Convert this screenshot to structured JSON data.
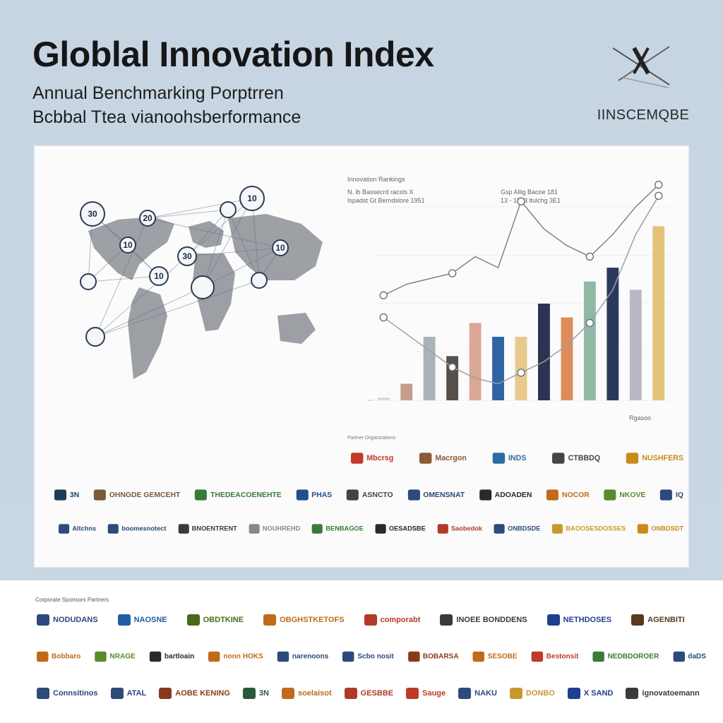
{
  "header": {
    "title": "Globlal Innovation Index",
    "subtitle_line1": "Annual Benchmarking Porptrren",
    "subtitle_line2": "Bcbbal Ttea vianoohsberformance",
    "brand_name": "IINSCEMQBE",
    "brand_icon": "crossed-lines-icon"
  },
  "map": {
    "markers": [
      {
        "label": "30"
      },
      {
        "label": "20"
      },
      {
        "label": "10"
      },
      {
        "label": "10"
      },
      {
        "label": "30"
      },
      {
        "label": "10"
      },
      {
        "label": "10"
      },
      {
        "label": ""
      },
      {
        "label": ""
      },
      {
        "label": ""
      },
      {
        "label": ""
      },
      {
        "label": ""
      }
    ]
  },
  "chart_panel": {
    "header_left_1": "Innovation Rankings",
    "header_left_2": "N. lb Bassecrd racsts X",
    "header_left_3": "Ispadst Gt Berndslore 1951",
    "header_mid_1": "Gsp Allig Bacoe 181",
    "header_mid_2": "13 - 1353 ltulchg 3E1",
    "corner_note": "Rgasoo"
  },
  "chart_data": {
    "type": "bar",
    "categories": [
      "",
      "",
      "",
      "",
      "",
      "",
      "",
      "",
      "",
      "",
      "",
      "",
      ""
    ],
    "series": [
      {
        "values": [
          1,
          6,
          23,
          16,
          28,
          23,
          23,
          35,
          30,
          43,
          48,
          40,
          63
        ]
      }
    ],
    "line_series": [
      {
        "values": [
          38,
          42,
          44,
          46,
          52,
          48,
          72,
          62,
          56,
          52,
          60,
          70,
          78
        ]
      },
      {
        "values": [
          30,
          24,
          18,
          12,
          8,
          6,
          10,
          14,
          20,
          28,
          40,
          60,
          74
        ]
      }
    ],
    "colors": [
      "#d9d9d9",
      "#c69c8c",
      "#a9b3b8",
      "#55504b",
      "#dba797",
      "#2f64a3",
      "#e7c98c",
      "#2b3550",
      "#de8c5c",
      "#8fb9a5",
      "#2b3a5c",
      "#b8b8c4",
      "#e4c27a"
    ],
    "ylim": [
      0,
      70
    ],
    "grid": false,
    "legend": "none"
  },
  "logos": {
    "caption_panel": "Partner Organizations",
    "panel_row1": [
      {
        "text": "Mbcrsg",
        "color": "#c0392b"
      },
      {
        "text": "Macrgon",
        "color": "#8a5a3a"
      },
      {
        "text": "INDS",
        "color": "#2d6aa3"
      },
      {
        "text": "CTBBDQ",
        "color": "#444"
      },
      {
        "text": "NUSHFERS",
        "color": "#c98a1a"
      }
    ],
    "panel_row2": [
      {
        "text": "3N",
        "color": "#1c3d5a"
      },
      {
        "text": "OHNGDE GEMCEHT",
        "color": "#7a5a3a"
      },
      {
        "text": "THEDEACOENEHTE",
        "color": "#3a7a3a"
      },
      {
        "text": "PHAS",
        "color": "#1f4f8f"
      },
      {
        "text": "ASNCTO",
        "color": "#444"
      },
      {
        "text": "OMENSNAT",
        "color": "#2d4a7a"
      },
      {
        "text": "ADOADEN",
        "color": "#2a2a2a"
      },
      {
        "text": "NOCOR",
        "color": "#c06a1a"
      },
      {
        "text": "NKOVE",
        "color": "#5a8a2a"
      },
      {
        "text": "IQ",
        "color": "#2d4a7a"
      }
    ],
    "panel_row3": [
      {
        "text": "Altchns",
        "color": "#2d4a7a"
      },
      {
        "text": "boomesnotect",
        "color": "#2d4a7a"
      },
      {
        "text": "BNOENTRENT",
        "color": "#3a3a3a"
      },
      {
        "text": "NOUHREHD",
        "color": "#888"
      },
      {
        "text": "BENBAGOE",
        "color": "#3a7a3a"
      },
      {
        "text": "OESADSBE",
        "color": "#2a2a2a"
      },
      {
        "text": "Saobedok",
        "color": "#b03a2a"
      },
      {
        "text": "ONBDSDE",
        "color": "#2d4a7a"
      },
      {
        "text": "BAOOSESDOSSES",
        "color": "#c89a2a"
      },
      {
        "text": "ONBDSDT",
        "color": "#c98a1a"
      }
    ],
    "caption_bottom": "Corporate Sponsors Partners",
    "bottom_row1": [
      {
        "text": "NODUDANS",
        "color": "#2d4a7a"
      },
      {
        "text": "NAOSNE",
        "color": "#1f5fa3"
      },
      {
        "text": "OBDTKINE",
        "color": "#4a6a1a"
      },
      {
        "text": "OBGHSTKETOFS",
        "color": "#c06a1a"
      },
      {
        "text": "comporabt",
        "color": "#b03a2a"
      },
      {
        "text": "INOEE BONDDENS",
        "color": "#3a3a3a"
      },
      {
        "text": "NETHDOSES",
        "color": "#1f3f8f"
      },
      {
        "text": "AGENBITI",
        "color": "#5a3a1a"
      }
    ],
    "bottom_row2": [
      {
        "text": "Bobbaro",
        "color": "#c06a1a"
      },
      {
        "text": "NRAGE",
        "color": "#5a8a2a"
      },
      {
        "text": "bartloain",
        "color": "#2a2a2a"
      },
      {
        "text": "nonn HOKS",
        "color": "#c06a1a"
      },
      {
        "text": "narenoons",
        "color": "#2d4a7a"
      },
      {
        "text": "Scbo nosit",
        "color": "#2d4a7a"
      },
      {
        "text": "BOBARSA",
        "color": "#8a3a1a"
      },
      {
        "text": "SESOBE",
        "color": "#c06a1a"
      },
      {
        "text": "Bestonsit",
        "color": "#c0392b"
      },
      {
        "text": "NEDBDOROER",
        "color": "#3a7a3a"
      },
      {
        "text": "daDS",
        "color": "#2d4a7a"
      }
    ],
    "bottom_row3": [
      {
        "text": "Connsitinos",
        "color": "#2d4a7a"
      },
      {
        "text": "ATAL",
        "color": "#2d4a7a"
      },
      {
        "text": "AOBE KENING",
        "color": "#8a3a1a"
      },
      {
        "text": "3N",
        "color": "#2a5a3a"
      },
      {
        "text": "soelaisot",
        "color": "#c06a1a"
      },
      {
        "text": "GESBBE",
        "color": "#b03a2a"
      },
      {
        "text": "Sauge",
        "color": "#c0392b"
      },
      {
        "text": "NAKU",
        "color": "#2d4a7a"
      },
      {
        "text": "DONBO",
        "color": "#c89a2a"
      },
      {
        "text": "X SAND",
        "color": "#1f3f8f"
      },
      {
        "text": "ignovatoemann",
        "color": "#3a3a3a"
      }
    ]
  }
}
